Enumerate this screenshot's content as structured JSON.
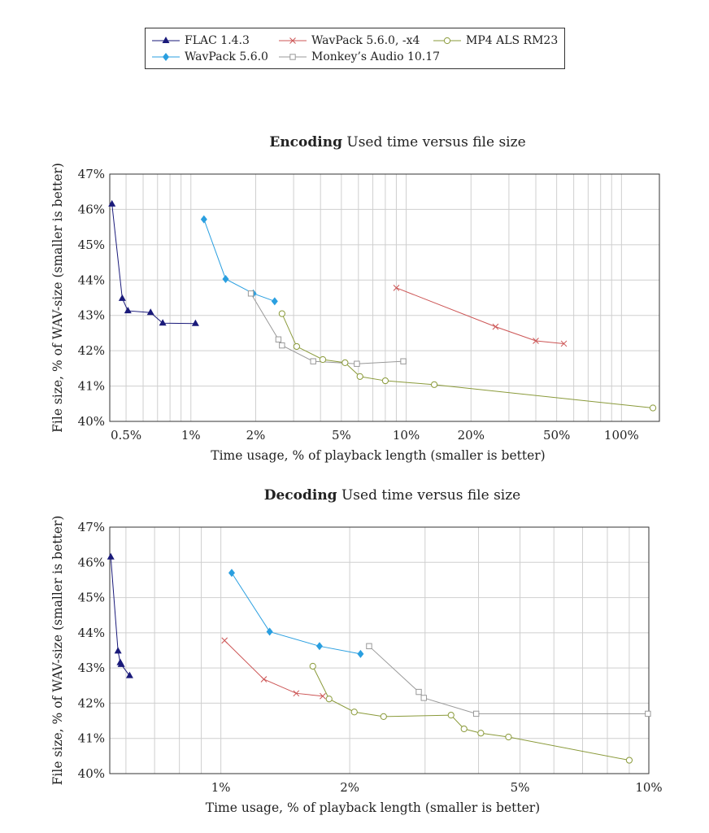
{
  "legend": [
    {
      "name": "FLAC 1.4.3",
      "color": "#1a1a7a",
      "marker": "triangle"
    },
    {
      "name": "WavPack 5.6.0, -x4",
      "color": "#cc5555",
      "marker": "cross"
    },
    {
      "name": "MP4 ALS RM23",
      "color": "#8a9a3a",
      "marker": "circle"
    },
    {
      "name": "WavPack 5.6.0",
      "color": "#2a9fe0",
      "marker": "diamond"
    },
    {
      "name": "Monkey’s Audio 10.17",
      "color": "#999999",
      "marker": "square"
    }
  ],
  "chart_data": [
    {
      "type": "line",
      "title_bold": "Encoding",
      "title": "Used time versus file size",
      "xlabel": "Time usage, % of playback length (smaller is better)",
      "ylabel": "File size, % of WAV-size (smaller is better)",
      "xscale": "log",
      "xlim": [
        0.42,
        150
      ],
      "ylim": [
        40,
        47
      ],
      "xticks": [
        0.5,
        1,
        2,
        5,
        10,
        20,
        50,
        100
      ],
      "xticklabels": [
        "0.5%",
        "1%",
        "2%",
        "5%",
        "10%",
        "20%",
        "50%",
        "100%"
      ],
      "yticks": [
        40,
        41,
        42,
        43,
        44,
        45,
        46,
        47
      ],
      "yticklabels": [
        "40%",
        "41%",
        "42%",
        "43%",
        "44%",
        "45%",
        "46%",
        "47%"
      ],
      "grid": true,
      "series": [
        {
          "name": "FLAC 1.4.3",
          "x": [
            0.43,
            0.48,
            0.51,
            0.65,
            0.74,
            1.05
          ],
          "y": [
            46.15,
            43.48,
            43.13,
            43.08,
            42.78,
            42.77
          ]
        },
        {
          "name": "WavPack 5.6.0",
          "x": [
            1.15,
            1.45,
            1.95,
            2.45
          ],
          "y": [
            45.72,
            44.03,
            43.62,
            43.4
          ]
        },
        {
          "name": "WavPack 5.6.0, -x4",
          "x": [
            9.0,
            26.0,
            40.0,
            54.0
          ],
          "y": [
            43.78,
            42.68,
            42.28,
            42.2
          ]
        },
        {
          "name": "Monkey’s Audio 10.17",
          "x": [
            1.9,
            2.55,
            2.65,
            3.7,
            5.9,
            9.7
          ],
          "y": [
            43.62,
            42.32,
            42.15,
            41.7,
            41.63,
            41.7
          ]
        },
        {
          "name": "MP4 ALS RM23",
          "x": [
            2.65,
            3.1,
            4.1,
            5.2,
            6.1,
            8.0,
            13.5,
            140.0
          ],
          "y": [
            43.05,
            42.12,
            41.75,
            41.66,
            41.27,
            41.15,
            41.04,
            40.38
          ]
        }
      ]
    },
    {
      "type": "line",
      "title_bold": "Decoding",
      "title": "Used time versus file size",
      "xlabel": "Time usage, % of playback length (smaller is better)",
      "ylabel": "File size, % of WAV-size (smaller is better)",
      "xscale": "log",
      "xlim": [
        0.55,
        10
      ],
      "ylim": [
        40,
        47
      ],
      "xticks": [
        1,
        2,
        5,
        10
      ],
      "xticklabels": [
        "1%",
        "2%",
        "5%",
        "10%"
      ],
      "yticks": [
        40,
        41,
        42,
        43,
        44,
        45,
        46,
        47
      ],
      "yticklabels": [
        "40%",
        "41%",
        "42%",
        "43%",
        "44%",
        "45%",
        "46%",
        "47%"
      ],
      "grid": true,
      "series": [
        {
          "name": "FLAC 1.4.3",
          "x": [
            0.553,
            0.575,
            0.582,
            0.585,
            0.612
          ],
          "y": [
            46.15,
            43.48,
            43.15,
            43.1,
            42.78
          ]
        },
        {
          "name": "WavPack 5.6.0",
          "x": [
            1.06,
            1.3,
            1.7,
            2.12
          ],
          "y": [
            45.7,
            44.03,
            43.62,
            43.4
          ]
        },
        {
          "name": "WavPack 5.6.0, -x4",
          "x": [
            1.02,
            1.26,
            1.5,
            1.73
          ],
          "y": [
            43.78,
            42.68,
            42.28,
            42.2
          ]
        },
        {
          "name": "Monkey’s Audio 10.17",
          "x": [
            2.22,
            2.9,
            2.98,
            3.95,
            9.95
          ],
          "y": [
            43.62,
            42.32,
            42.15,
            41.7,
            41.7
          ]
        },
        {
          "name": "MP4 ALS RM23",
          "x": [
            1.64,
            1.79,
            2.05,
            2.4,
            3.45,
            3.7,
            4.05,
            4.7,
            9.0
          ],
          "y": [
            43.05,
            42.12,
            41.75,
            41.62,
            41.66,
            41.27,
            41.15,
            41.04,
            40.38
          ]
        }
      ]
    }
  ]
}
